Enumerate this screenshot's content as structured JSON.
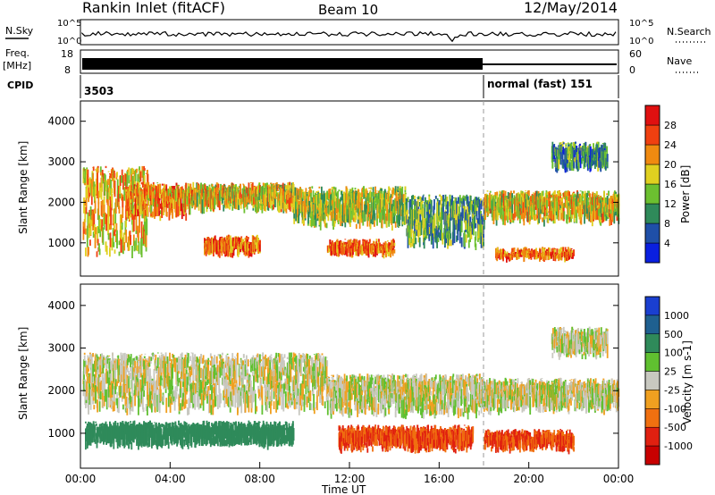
{
  "header": {
    "station": "Rankin Inlet (fitACF)",
    "beam": "Beam 10",
    "date": "12/May/2014"
  },
  "status_panels": {
    "nsky_label": "N.Sky",
    "nsearch_label": "N.Search",
    "noise_ticks": [
      "10^5",
      "10^0"
    ],
    "noise_ticks_right": [
      "10^5",
      "10^0"
    ],
    "freq_label": "Freq.",
    "freq_unit": "[MHz]",
    "freq_ticks": [
      "18",
      "8"
    ],
    "nave_label": "Nave",
    "nave_ticks": [
      "60",
      "0"
    ],
    "cpid_label": "CPID",
    "cpid_1": "3503",
    "cpid_2": "normal (fast) 151"
  },
  "power_scale": {
    "title": "Power [dB]",
    "ticks": [
      "28",
      "24",
      "20",
      "16",
      "12",
      "8",
      "4"
    ],
    "colors": [
      "#0a1fe0",
      "#1f4fa8",
      "#2f8a5a",
      "#6cc030",
      "#e0d020",
      "#f08a10",
      "#f04010",
      "#e01010"
    ]
  },
  "velocity_scale": {
    "title": "Velocity [m s-1]",
    "ticks": [
      "1000",
      "500",
      "100",
      "25",
      "-25",
      "-100",
      "-500",
      "-1000"
    ],
    "colors": [
      "#1a3fd0",
      "#1f6090",
      "#2f8a5a",
      "#60c030",
      "#c8c8c0",
      "#f0a020",
      "#f07010",
      "#e02010",
      "#c80000"
    ]
  },
  "chart_data": [
    {
      "type": "heatmap",
      "name": "power",
      "ylabel": "Slant Range [km]",
      "ylim": [
        180,
        4500
      ],
      "xlim": [
        0,
        24
      ],
      "yticks": [
        1000,
        2000,
        3000,
        4000
      ],
      "bands": [
        {
          "t0": 0.1,
          "t1": 3.0,
          "r0": 600,
          "r1": 2900,
          "value": 20
        },
        {
          "t0": 2.0,
          "t1": 5.0,
          "r0": 1500,
          "r1": 2500,
          "value": 22
        },
        {
          "t0": 5.0,
          "t1": 9.5,
          "r0": 1700,
          "r1": 2500,
          "value": 18
        },
        {
          "t0": 5.5,
          "t1": 8.0,
          "r0": 600,
          "r1": 1200,
          "value": 24
        },
        {
          "t0": 9.5,
          "t1": 14.5,
          "r0": 1300,
          "r1": 2400,
          "value": 16
        },
        {
          "t0": 11.0,
          "t1": 14.0,
          "r0": 600,
          "r1": 1100,
          "value": 24
        },
        {
          "t0": 14.5,
          "t1": 18.0,
          "r0": 800,
          "r1": 2200,
          "value": 12
        },
        {
          "t0": 18.0,
          "t1": 24.0,
          "r0": 1400,
          "r1": 2300,
          "value": 18
        },
        {
          "t0": 18.5,
          "t1": 22.0,
          "r0": 500,
          "r1": 900,
          "value": 24
        },
        {
          "t0": 21.0,
          "t1": 23.5,
          "r0": 2700,
          "r1": 3500,
          "value": 10
        }
      ]
    },
    {
      "type": "heatmap",
      "name": "velocity",
      "ylabel": "Slant Range [km]",
      "xlabel": "Time UT",
      "ylim": [
        180,
        4500
      ],
      "xlim": [
        0,
        24
      ],
      "yticks": [
        1000,
        2000,
        3000,
        4000
      ],
      "xticks": [
        "00:00",
        "04:00",
        "08:00",
        "12:00",
        "16:00",
        "20:00",
        "00:00"
      ],
      "bands": [
        {
          "t0": 0.1,
          "t1": 11.0,
          "r0": 1400,
          "r1": 2900,
          "value": 0
        },
        {
          "t0": 0.2,
          "t1": 9.5,
          "r0": 600,
          "r1": 1300,
          "value": 200
        },
        {
          "t0": 11.0,
          "t1": 18.0,
          "r0": 1300,
          "r1": 2400,
          "value": 0
        },
        {
          "t0": 11.5,
          "t1": 17.5,
          "r0": 500,
          "r1": 1200,
          "value": -300
        },
        {
          "t0": 18.0,
          "t1": 24.0,
          "r0": 1400,
          "r1": 2300,
          "value": 0
        },
        {
          "t0": 18.0,
          "t1": 22.0,
          "r0": 500,
          "r1": 1100,
          "value": -300
        },
        {
          "t0": 21.0,
          "t1": 23.5,
          "r0": 2700,
          "r1": 3500,
          "value": 0
        }
      ]
    }
  ]
}
